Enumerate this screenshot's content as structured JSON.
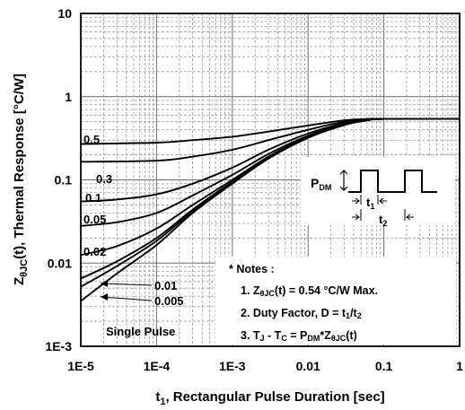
{
  "chart_data": {
    "type": "line",
    "xscale": "log",
    "yscale": "log",
    "xlim": [
      1e-05,
      1
    ],
    "ylim": [
      0.001,
      10
    ],
    "grid": true,
    "xlabel": {
      "t": "t",
      "sub": "1",
      "rest": ", Rectangular Pulse Duration [sec]"
    },
    "ylabel": {
      "t": "Z",
      "sub": "θJC",
      "rest": "(t), Thermal Response [°C/W]"
    },
    "xticks": [
      {
        "value": 1e-05,
        "label": "1E-5"
      },
      {
        "value": 0.0001,
        "label": "1E-4"
      },
      {
        "value": 0.001,
        "label": "1E-3"
      },
      {
        "value": 0.01,
        "label": "0.01"
      },
      {
        "value": 0.1,
        "label": "0.1"
      },
      {
        "value": 1,
        "label": "1"
      }
    ],
    "yticks": [
      {
        "value": 0.001,
        "label": "1E-3"
      },
      {
        "value": 0.01,
        "label": "0.01"
      },
      {
        "value": 0.1,
        "label": "0.1"
      },
      {
        "value": 1,
        "label": "1"
      },
      {
        "value": 10,
        "label": "10"
      }
    ],
    "series": [
      {
        "name": "0.5",
        "x": [
          1e-05,
          0.0001,
          0.0003,
          0.001,
          0.003,
          0.01,
          0.03,
          0.06,
          0.1,
          1
        ],
        "y": [
          0.27,
          0.28,
          0.3,
          0.33,
          0.38,
          0.45,
          0.52,
          0.54,
          0.54,
          0.54
        ]
      },
      {
        "name": "0.3",
        "x": [
          1e-05,
          0.0001,
          0.0003,
          0.001,
          0.003,
          0.01,
          0.03,
          0.06,
          0.1,
          1
        ],
        "y": [
          0.165,
          0.17,
          0.19,
          0.23,
          0.3,
          0.4,
          0.5,
          0.535,
          0.54,
          0.54
        ]
      },
      {
        "name": "0.1",
        "x": [
          1e-05,
          3e-05,
          0.0001,
          0.0003,
          0.001,
          0.003,
          0.01,
          0.03,
          0.06,
          0.1,
          1
        ],
        "y": [
          0.055,
          0.058,
          0.067,
          0.09,
          0.14,
          0.23,
          0.36,
          0.48,
          0.53,
          0.54,
          0.54
        ]
      },
      {
        "name": "0.05",
        "x": [
          1e-05,
          3e-05,
          0.0001,
          0.0003,
          0.001,
          0.003,
          0.01,
          0.03,
          0.06,
          0.1,
          1
        ],
        "y": [
          0.028,
          0.031,
          0.04,
          0.065,
          0.115,
          0.205,
          0.34,
          0.47,
          0.53,
          0.54,
          0.54
        ]
      },
      {
        "name": "0.02",
        "x": [
          1e-05,
          3e-05,
          0.0001,
          0.0003,
          0.001,
          0.003,
          0.01,
          0.03,
          0.06,
          0.1,
          1
        ],
        "y": [
          0.0125,
          0.016,
          0.026,
          0.05,
          0.1,
          0.19,
          0.33,
          0.465,
          0.525,
          0.54,
          0.54
        ]
      },
      {
        "name": "0.01",
        "x": [
          1e-05,
          3e-05,
          0.0001,
          0.0003,
          0.001,
          0.003,
          0.01,
          0.03,
          0.06,
          0.1,
          1
        ],
        "y": [
          0.0065,
          0.0105,
          0.02,
          0.044,
          0.095,
          0.185,
          0.325,
          0.46,
          0.52,
          0.54,
          0.54
        ]
      },
      {
        "name": "0.005",
        "x": [
          1e-05,
          3e-05,
          0.0001,
          0.0003,
          0.001,
          0.003,
          0.01,
          0.03,
          0.06,
          0.1,
          1
        ],
        "y": [
          0.0052,
          0.0092,
          0.0185,
          0.042,
          0.093,
          0.183,
          0.322,
          0.458,
          0.52,
          0.54,
          0.54
        ]
      },
      {
        "name": "Single Pulse",
        "x": [
          1e-05,
          3e-05,
          0.0001,
          0.0003,
          0.001,
          0.003,
          0.01,
          0.03,
          0.06,
          0.1,
          1
        ],
        "y": [
          0.0035,
          0.0075,
          0.0165,
          0.04,
          0.09,
          0.18,
          0.32,
          0.455,
          0.518,
          0.54,
          0.54
        ]
      }
    ],
    "notes": {
      "title": "* Notes :",
      "line1": {
        "pre": "1. Z",
        "sub": "θJC",
        "post": "(t) = 0.54 °C/W Max."
      },
      "line2": {
        "pre": "2. Duty Factor, D = t",
        "sub1": "1",
        "mid": "/t",
        "sub2": "2"
      },
      "line3": {
        "pre": "3. T",
        "s1": "J",
        "m1": " - T",
        "s2": "C",
        "m2": " = P",
        "s3": "DM",
        "m3": "*Z",
        "s4": "θJC",
        "post": "(t)"
      }
    },
    "inset": {
      "p": "P",
      "p_sub": "DM",
      "t1": "t",
      "t1_sub": "1",
      "t2": "t",
      "t2_sub": "2"
    }
  }
}
